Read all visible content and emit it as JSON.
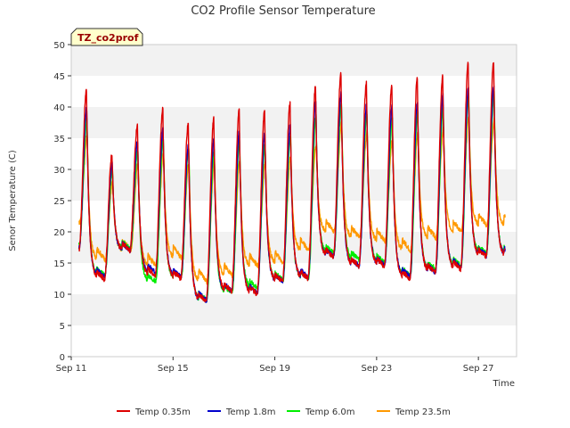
{
  "chart_data": {
    "type": "line",
    "title": "CO2 Profile Sensor Temperature",
    "badge": "TZ_co2prof",
    "xlabel": "Time",
    "ylabel": "Senor Temperature (C)",
    "xlim": [
      0,
      17.5
    ],
    "ylim": [
      0,
      50
    ],
    "yticks": [
      0,
      5,
      10,
      15,
      20,
      25,
      30,
      35,
      40,
      45,
      50
    ],
    "xticks": [
      {
        "x": 0,
        "label": "Sep 11"
      },
      {
        "x": 4,
        "label": "Sep 15"
      },
      {
        "x": 8,
        "label": "Sep 19"
      },
      {
        "x": 12,
        "label": "Sep 23"
      },
      {
        "x": 16,
        "label": "Sep 27"
      }
    ],
    "grid": "horizontal bands",
    "legend_position": "bottom",
    "x_start_day": 0.3,
    "x_end_day": 17.05,
    "days": [
      {
        "max": [
          42.8,
          39.8,
          38.0,
          35.3
        ],
        "min": [
          17.0,
          17.5,
          18.0,
          21.5
        ]
      },
      {
        "max": [
          32.5,
          31.0,
          30.0,
          28.0
        ],
        "min": [
          12.4,
          12.8,
          13.0,
          15.5
        ]
      },
      {
        "max": [
          37.0,
          34.5,
          33.0,
          31.0
        ],
        "min": [
          17.0,
          17.0,
          17.2,
          17.0
        ]
      },
      {
        "max": [
          39.7,
          36.5,
          35.0,
          33.0
        ],
        "min": [
          13.0,
          13.5,
          12.0,
          14.5
        ]
      },
      {
        "max": [
          37.3,
          34.0,
          33.5,
          31.0
        ],
        "min": [
          12.5,
          12.8,
          12.5,
          15.8
        ]
      },
      {
        "max": [
          38.2,
          35.0,
          33.0,
          31.5
        ],
        "min": [
          8.8,
          9.0,
          9.0,
          12.0
        ]
      },
      {
        "max": [
          39.5,
          36.0,
          34.5,
          31.5
        ],
        "min": [
          10.5,
          10.5,
          10.2,
          13.0
        ]
      },
      {
        "max": [
          39.3,
          35.7,
          34.2,
          31.0
        ],
        "min": [
          10.0,
          10.2,
          11.0,
          14.5
        ]
      },
      {
        "max": [
          40.5,
          37.0,
          35.5,
          32.0
        ],
        "min": [
          12.0,
          12.0,
          12.2,
          15.0
        ]
      },
      {
        "max": [
          43.2,
          41.0,
          38.5,
          34.0
        ],
        "min": [
          12.5,
          12.7,
          12.5,
          17.0
        ]
      },
      {
        "max": [
          45.3,
          42.2,
          40.5,
          37.5
        ],
        "min": [
          16.0,
          16.0,
          16.5,
          20.0
        ]
      },
      {
        "max": [
          43.8,
          40.5,
          39.0,
          36.0
        ],
        "min": [
          14.5,
          14.5,
          15.5,
          19.0
        ]
      },
      {
        "max": [
          43.5,
          40.2,
          38.0,
          35.0
        ],
        "min": [
          14.5,
          14.7,
          15.0,
          18.5
        ]
      },
      {
        "max": [
          44.6,
          41.0,
          39.0,
          36.0
        ],
        "min": [
          12.5,
          12.8,
          13.0,
          17.0
        ]
      },
      {
        "max": [
          44.9,
          42.0,
          40.0,
          36.5
        ],
        "min": [
          13.5,
          13.5,
          14.0,
          19.0
        ]
      },
      {
        "max": [
          46.9,
          43.0,
          42.0,
          38.5
        ],
        "min": [
          14.0,
          14.3,
          14.5,
          20.0
        ]
      },
      {
        "max": [
          47.2,
          43.5,
          42.5,
          38.0
        ],
        "min": [
          16.0,
          16.2,
          16.5,
          21.0
        ]
      }
    ],
    "series": [
      {
        "name": "Temp 0.35m",
        "color": "#dd0000"
      },
      {
        "name": "Temp 1.8m",
        "color": "#0000cc"
      },
      {
        "name": "Temp 6.0m",
        "color": "#00ee00"
      },
      {
        "name": "Temp 23.5m",
        "color": "#ff9900"
      }
    ]
  }
}
